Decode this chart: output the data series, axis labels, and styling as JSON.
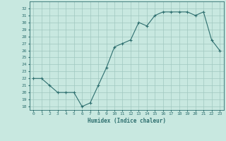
{
  "x": [
    0,
    1,
    2,
    3,
    4,
    5,
    6,
    7,
    8,
    9,
    10,
    11,
    12,
    13,
    14,
    15,
    16,
    17,
    18,
    19,
    20,
    21,
    22,
    23
  ],
  "y": [
    22,
    22,
    21,
    20,
    20,
    20,
    18,
    18.5,
    21,
    23.5,
    26.5,
    27,
    27.5,
    30,
    29.5,
    31,
    31.5,
    31.5,
    31.5,
    31.5,
    31,
    31.5,
    27.5,
    26
  ],
  "line_color": "#2d6e6e",
  "marker": "+",
  "bg_color": "#c8e8e0",
  "grid_color": "#a0c8c0",
  "axis_label_color": "#2d6e6e",
  "tick_label_color": "#2d6e6e",
  "xlabel": "Humidex (Indice chaleur)",
  "ylim": [
    17.5,
    33
  ],
  "xlim": [
    -0.5,
    23.5
  ],
  "yticks": [
    18,
    19,
    20,
    21,
    22,
    23,
    24,
    25,
    26,
    27,
    28,
    29,
    30,
    31,
    32
  ],
  "xticks": [
    0,
    1,
    2,
    3,
    4,
    5,
    6,
    7,
    8,
    9,
    10,
    11,
    12,
    13,
    14,
    15,
    16,
    17,
    18,
    19,
    20,
    21,
    22,
    23
  ]
}
